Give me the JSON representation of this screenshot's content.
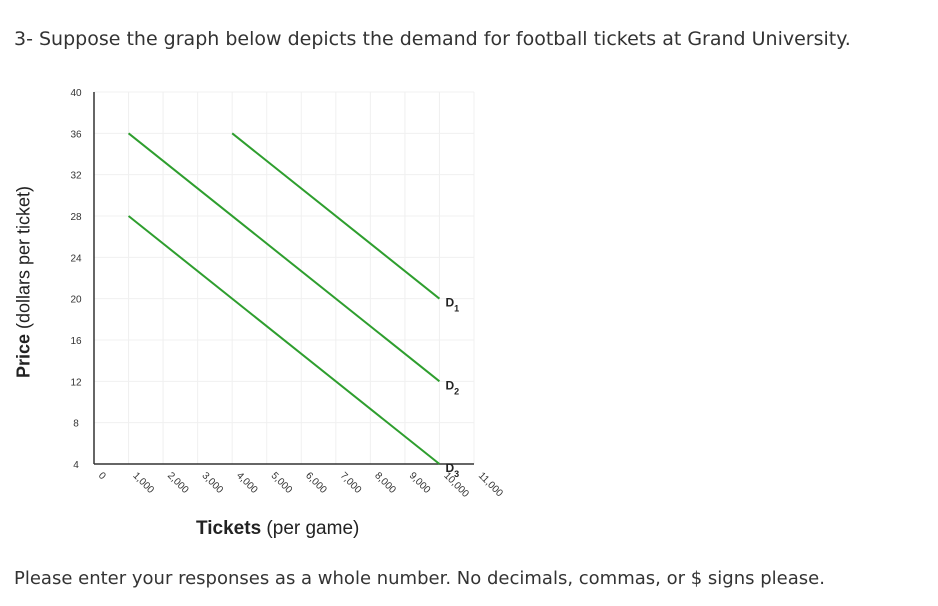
{
  "question": "3- Suppose the graph below depicts the demand for football tickets at Grand University.",
  "instructions": "Please enter your responses as a whole number. No decimals, commas, or $ signs please.",
  "axis": {
    "y_bold": "Price",
    "y_rest": " (dollars per ticket)",
    "x_bold": "Tickets",
    "x_rest": " (per game)"
  },
  "chart_data": {
    "type": "line",
    "xlabel": "Tickets (per game)",
    "ylabel": "Price (dollars per ticket)",
    "xlim": [
      0,
      11000
    ],
    "ylim": [
      4,
      40
    ],
    "x_ticks": [
      "0",
      "1,000",
      "2,000",
      "3,000",
      "4,000",
      "5,000",
      "6,000",
      "7,000",
      "8,000",
      "9,000",
      "10,000",
      "11,000"
    ],
    "y_ticks": [
      "4",
      "8",
      "12",
      "16",
      "20",
      "24",
      "28",
      "32",
      "36",
      "40"
    ],
    "grid": true,
    "line_color": "#2e9e2e",
    "series": [
      {
        "name": "D1",
        "sub": "1",
        "x": [
          4000,
          10000
        ],
        "y": [
          36,
          20
        ]
      },
      {
        "name": "D2",
        "sub": "2",
        "x": [
          1000,
          10000
        ],
        "y": [
          36,
          12
        ]
      },
      {
        "name": "D3",
        "sub": "3",
        "x": [
          1000,
          10000
        ],
        "y": [
          28,
          4
        ]
      }
    ]
  }
}
